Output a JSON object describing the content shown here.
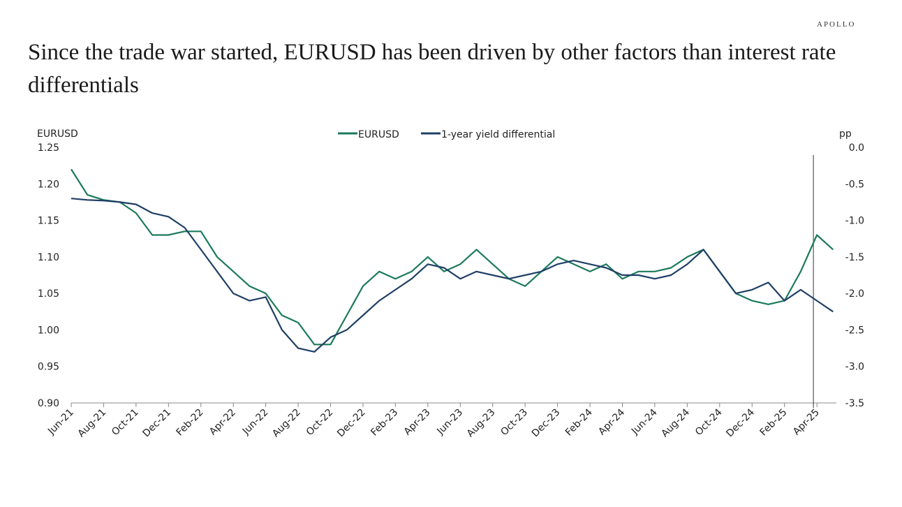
{
  "brand": "APOLLO",
  "title": "Since the trade war started, EURUSD has been driven by other factors than interest rate differentials",
  "chart_data": {
    "type": "line",
    "title": "Since the trade war started, EURUSD has been driven by other factors than interest rate differentials",
    "ylabel_left": "EURUSD",
    "ylabel_right": "pp",
    "ylim_left": [
      0.9,
      1.25
    ],
    "ylim_right": [
      -3.5,
      0.0
    ],
    "yticks_left": [
      "1.25",
      "1.20",
      "1.15",
      "1.10",
      "1.05",
      "1.00",
      "0.95",
      "0.90"
    ],
    "yticks_right": [
      "0.0",
      "-0.5",
      "-1.0",
      "-1.5",
      "-2.0",
      "-2.5",
      "-3.0",
      "-3.5"
    ],
    "xticks": [
      "Jun-21",
      "Aug-21",
      "Oct-21",
      "Dec-21",
      "Feb-22",
      "Apr-22",
      "Jun-22",
      "Aug-22",
      "Oct-22",
      "Dec-22",
      "Feb-23",
      "Apr-23",
      "Jun-23",
      "Aug-23",
      "Oct-23",
      "Dec-23",
      "Feb-24",
      "Apr-24",
      "Jun-24",
      "Aug-24",
      "Oct-24",
      "Dec-24",
      "Feb-25",
      "Apr-25"
    ],
    "legend": "top-center",
    "grid": false,
    "vertical_marker": "2025-04",
    "x": [
      "2021-06",
      "2021-07",
      "2021-08",
      "2021-09",
      "2021-10",
      "2021-11",
      "2021-12",
      "2022-01",
      "2022-02",
      "2022-03",
      "2022-04",
      "2022-05",
      "2022-06",
      "2022-07",
      "2022-08",
      "2022-09",
      "2022-10",
      "2022-11",
      "2022-12",
      "2023-01",
      "2023-02",
      "2023-03",
      "2023-04",
      "2023-05",
      "2023-06",
      "2023-07",
      "2023-08",
      "2023-09",
      "2023-10",
      "2023-11",
      "2023-12",
      "2024-01",
      "2024-02",
      "2024-03",
      "2024-04",
      "2024-05",
      "2024-06",
      "2024-07",
      "2024-08",
      "2024-09",
      "2024-10",
      "2024-11",
      "2024-12",
      "2025-01",
      "2025-02",
      "2025-03",
      "2025-04",
      "2025-05"
    ],
    "series": [
      {
        "name": "EURUSD",
        "axis": "left",
        "color": "#1b7a5a",
        "values": [
          1.22,
          1.185,
          1.178,
          1.175,
          1.16,
          1.13,
          1.13,
          1.135,
          1.135,
          1.1,
          1.08,
          1.06,
          1.05,
          1.02,
          1.01,
          0.98,
          0.98,
          1.02,
          1.06,
          1.08,
          1.07,
          1.08,
          1.1,
          1.08,
          1.09,
          1.11,
          1.09,
          1.07,
          1.06,
          1.08,
          1.1,
          1.09,
          1.08,
          1.09,
          1.07,
          1.08,
          1.08,
          1.085,
          1.1,
          1.11,
          1.08,
          1.05,
          1.04,
          1.035,
          1.04,
          1.08,
          1.13,
          1.11
        ]
      },
      {
        "name": "1-year yield differential",
        "axis": "right",
        "color": "#1f3f66",
        "values": [
          -0.7,
          -0.72,
          -0.73,
          -0.75,
          -0.78,
          -0.9,
          -0.95,
          -1.1,
          -1.4,
          -1.7,
          -2.0,
          -2.1,
          -2.05,
          -2.5,
          -2.75,
          -2.8,
          -2.6,
          -2.5,
          -2.3,
          -2.1,
          -1.95,
          -1.8,
          -1.6,
          -1.65,
          -1.8,
          -1.7,
          -1.75,
          -1.8,
          -1.75,
          -1.7,
          -1.6,
          -1.55,
          -1.6,
          -1.65,
          -1.75,
          -1.75,
          -1.8,
          -1.75,
          -1.6,
          -1.4,
          -1.7,
          -2.0,
          -1.95,
          -1.85,
          -2.1,
          -1.95,
          -2.1,
          -2.25
        ]
      }
    ]
  }
}
